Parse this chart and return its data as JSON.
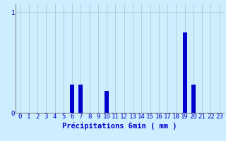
{
  "categories": [
    0,
    1,
    2,
    3,
    4,
    5,
    6,
    7,
    8,
    9,
    10,
    11,
    12,
    13,
    14,
    15,
    16,
    17,
    18,
    19,
    20,
    21,
    22,
    23
  ],
  "values": [
    0,
    0,
    0,
    0,
    0,
    0,
    0.28,
    0.28,
    0,
    0,
    0.22,
    0,
    0,
    0,
    0,
    0,
    0,
    0,
    0,
    0.8,
    0.28,
    0,
    0,
    0
  ],
  "bar_color": "#0000cc",
  "bg_color": "#cceeff",
  "grid_color": "#aacccc",
  "text_color": "#0000cc",
  "xlabel": "Précipitations 6min ( mm )",
  "ytick_labels": [
    "0",
    "1"
  ],
  "ytick_vals": [
    0,
    1
  ],
  "ylim": [
    0,
    1.08
  ],
  "xlim": [
    -0.5,
    23.5
  ],
  "xlabel_fontsize": 7.5,
  "tick_fontsize": 6.5,
  "bar_width": 0.5
}
